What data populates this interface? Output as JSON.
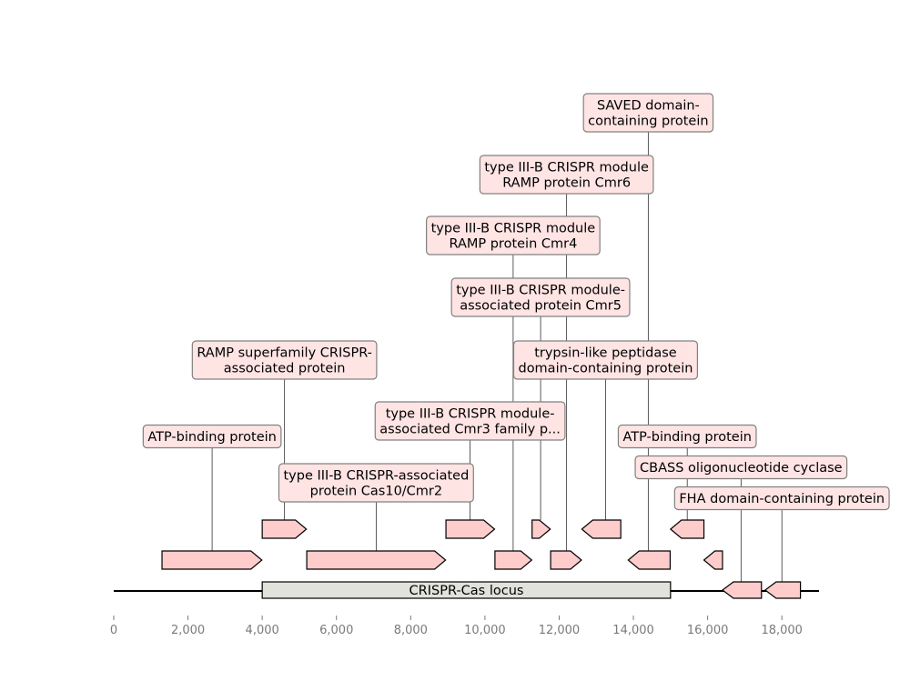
{
  "chart_data": {
    "type": "gene-map",
    "x_range": [
      0,
      19000
    ],
    "ticks": [
      {
        "value": 0,
        "label": "0"
      },
      {
        "value": 2000,
        "label": "2,000"
      },
      {
        "value": 4000,
        "label": "4,000"
      },
      {
        "value": 6000,
        "label": "6,000"
      },
      {
        "value": 8000,
        "label": "8,000"
      },
      {
        "value": 10000,
        "label": "10,000"
      },
      {
        "value": 12000,
        "label": "12,000"
      },
      {
        "value": 14000,
        "label": "14,000"
      },
      {
        "value": 16000,
        "label": "16,000"
      },
      {
        "value": 18000,
        "label": "18,000"
      }
    ],
    "locus": {
      "start": 4000,
      "end": 15000,
      "label": "CRISPR-Cas locus"
    },
    "features": [
      {
        "start": 1300,
        "end": 3990,
        "strand": 1,
        "level": 1
      },
      {
        "start": 4000,
        "end": 5190,
        "strand": 1,
        "level": 2
      },
      {
        "start": 5200,
        "end": 8940,
        "strand": 1,
        "level": 1
      },
      {
        "start": 8950,
        "end": 10260,
        "strand": 1,
        "level": 2
      },
      {
        "start": 10270,
        "end": 11260,
        "strand": 1,
        "level": 1
      },
      {
        "start": 11270,
        "end": 11760,
        "strand": 1,
        "level": 2
      },
      {
        "start": 11770,
        "end": 12600,
        "strand": 1,
        "level": 1
      },
      {
        "start": 12610,
        "end": 13660,
        "strand": -1,
        "level": 2
      },
      {
        "start": 13860,
        "end": 14990,
        "strand": -1,
        "level": 1
      },
      {
        "start": 15000,
        "end": 15900,
        "strand": -1,
        "level": 2
      },
      {
        "start": 15900,
        "end": 16400,
        "strand": -1,
        "level": 1
      },
      {
        "start": 16400,
        "end": 17450,
        "strand": -1,
        "level": 0
      },
      {
        "start": 17550,
        "end": 18500,
        "strand": -1,
        "level": 0
      }
    ],
    "labels": [
      {
        "lines": [
          "SAVED domain-",
          "containing protein"
        ],
        "x": 14400,
        "anchor_level": 1
      },
      {
        "lines": [
          "type III-B CRISPR module",
          "RAMP protein Cmr6"
        ],
        "x": 12200,
        "anchor_level": 1
      },
      {
        "lines": [
          "type III-B CRISPR module",
          "RAMP protein Cmr4"
        ],
        "x": 10760,
        "anchor_level": 1
      },
      {
        "lines": [
          "type III-B CRISPR module-",
          "associated protein Cmr5"
        ],
        "x": 11500,
        "anchor_level": 2
      },
      {
        "lines": [
          "RAMP superfamily CRISPR-",
          "associated protein"
        ],
        "x": 4600,
        "anchor_level": 2
      },
      {
        "lines": [
          "trypsin-like peptidase",
          "domain-containing protein"
        ],
        "x": 13250,
        "anchor_level": 2
      },
      {
        "lines": [
          "type III-B CRISPR module-",
          "associated Cmr3 family p..."
        ],
        "x": 9600,
        "anchor_level": 2
      },
      {
        "lines": [
          "ATP-binding protein"
        ],
        "x": 2650,
        "anchor_level": 1
      },
      {
        "lines": [
          "ATP-binding protein"
        ],
        "x": 15450,
        "anchor_level": 2
      },
      {
        "lines": [
          "type III-B CRISPR-associated",
          "protein Cas10/Cmr2"
        ],
        "x": 7070,
        "anchor_level": 1
      },
      {
        "lines": [
          "CBASS oligonucleotide cyclase"
        ],
        "x": 16900,
        "anchor_level": 0
      },
      {
        "lines": [
          "FHA domain-containing protein"
        ],
        "x": 18000,
        "anchor_level": 0
      }
    ]
  }
}
